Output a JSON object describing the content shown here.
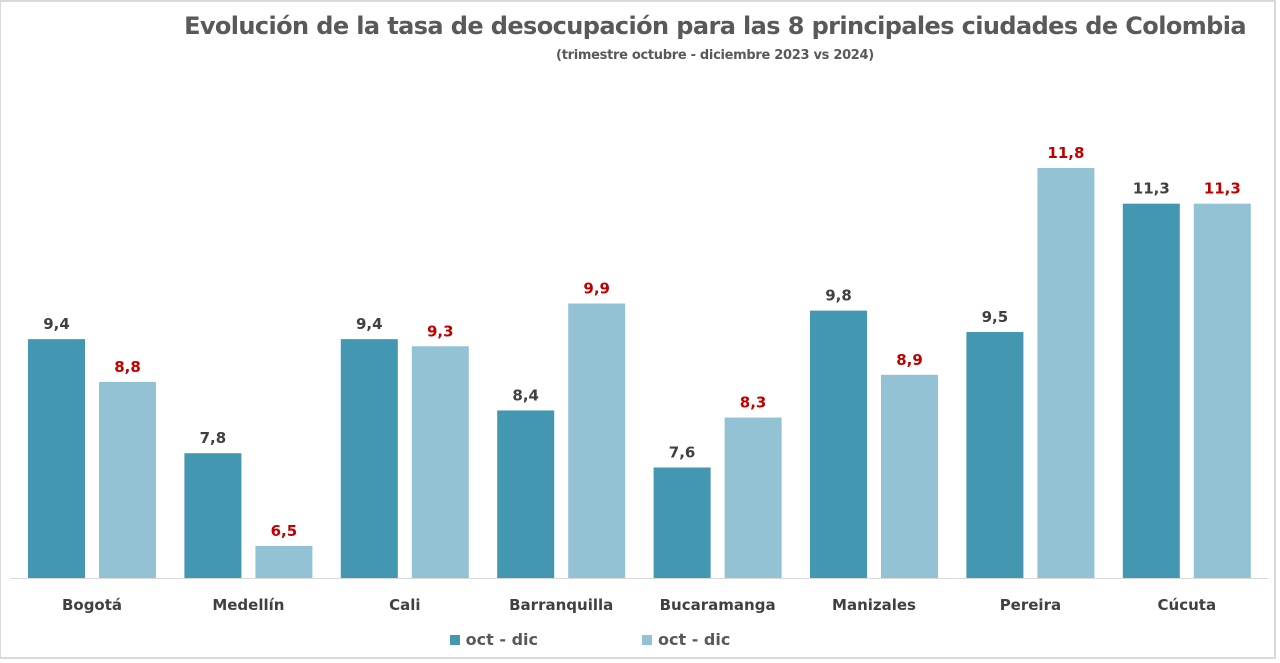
{
  "chart_data": {
    "type": "bar",
    "title": "Evolución de la tasa de desocupación para las 8 principales ciudades de Colombia",
    "subtitle": "(trimestre octubre - diciembre 2023 vs 2024)",
    "xlabel": "",
    "ylabel": "",
    "categories": [
      "Bogotá",
      "Medellín",
      "Cali",
      "Barranquilla",
      "Bucaramanga",
      "Manizales",
      "Pereira",
      "Cúcuta"
    ],
    "series": [
      {
        "name": "oct - dic",
        "year": "2023",
        "color": "#4397b0",
        "label_color": "#404040",
        "values": [
          9.4,
          7.8,
          9.4,
          8.4,
          7.6,
          9.8,
          9.5,
          11.3
        ],
        "labels": [
          "9,4",
          "7,8",
          "9,4",
          "8,4",
          "7,6",
          "9,8",
          "9,5",
          "11,3"
        ]
      },
      {
        "name": "oct - dic",
        "year": "2024",
        "color": "#93c2d4",
        "label_color": "#c00000",
        "values": [
          8.8,
          6.5,
          9.3,
          9.9,
          8.3,
          8.9,
          11.8,
          11.3
        ],
        "labels": [
          "8,8",
          "6,5",
          "9,3",
          "9,9",
          "8,3",
          "8,9",
          "11,8",
          "11,3"
        ]
      }
    ],
    "ylim": [
      6.05,
      12.2
    ],
    "grid": false,
    "legend_position": "bottom"
  }
}
